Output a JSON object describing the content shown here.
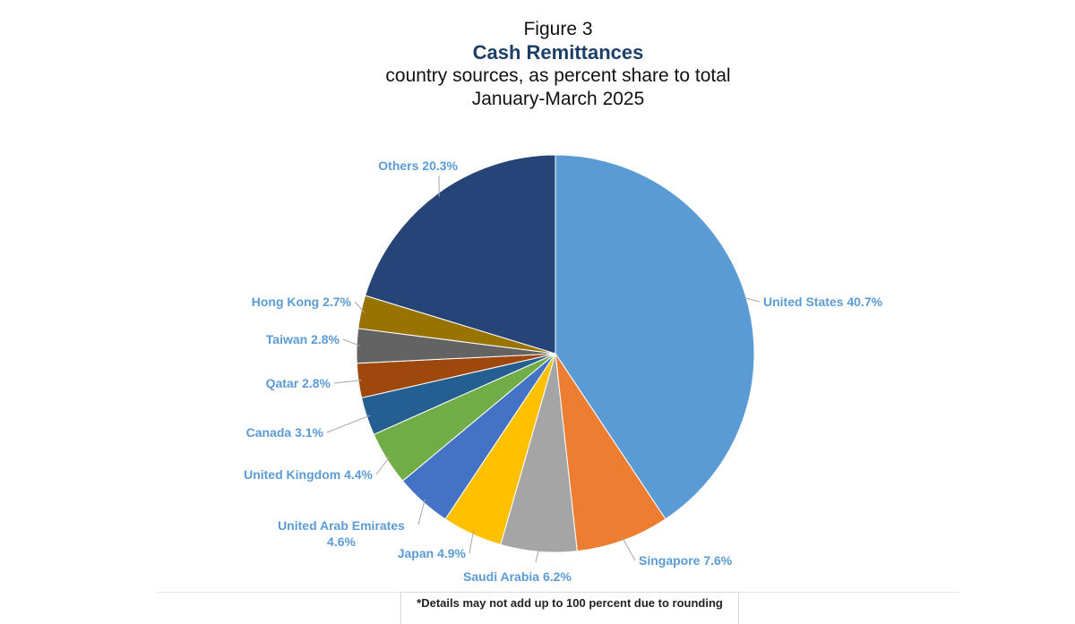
{
  "header": {
    "figure": "Figure 3",
    "title": "Cash Remittances",
    "subtitle": "country sources, as percent share to total",
    "period": "January-March 2025"
  },
  "footnote": "*Details may not add up to 100 percent due to rounding",
  "chart_data": {
    "type": "pie",
    "title": "Cash Remittances",
    "slices": [
      {
        "name": "United States",
        "value": 40.7,
        "label": "United States 40.7%",
        "color": "#5b9bd5"
      },
      {
        "name": "Singapore",
        "value": 7.6,
        "label": "Singapore 7.6%",
        "color": "#ed7d31"
      },
      {
        "name": "Saudi Arabia",
        "value": 6.2,
        "label": "Saudi Arabia 6.2%",
        "color": "#a5a5a5"
      },
      {
        "name": "Japan",
        "value": 4.9,
        "label": "Japan 4.9%",
        "color": "#ffc000"
      },
      {
        "name": "United Arab Emirates",
        "value": 4.6,
        "label": "United Arab Emirates 4.6%",
        "color": "#4472c4"
      },
      {
        "name": "United Kingdom",
        "value": 4.4,
        "label": "United Kingdom 4.4%",
        "color": "#70ad47"
      },
      {
        "name": "Canada",
        "value": 3.1,
        "label": "Canada 3.1%",
        "color": "#255e91"
      },
      {
        "name": "Qatar",
        "value": 2.8,
        "label": "Qatar 2.8%",
        "color": "#9e480e"
      },
      {
        "name": "Taiwan",
        "value": 2.8,
        "label": "Taiwan 2.8%",
        "color": "#636363"
      },
      {
        "name": "Hong Kong",
        "value": 2.7,
        "label": "Hong Kong 2.7%",
        "color": "#997300"
      },
      {
        "name": "Others",
        "value": 20.3,
        "label": "Others 20.3%",
        "color": "#264478"
      }
    ],
    "label_color": "#5b9bd5"
  }
}
